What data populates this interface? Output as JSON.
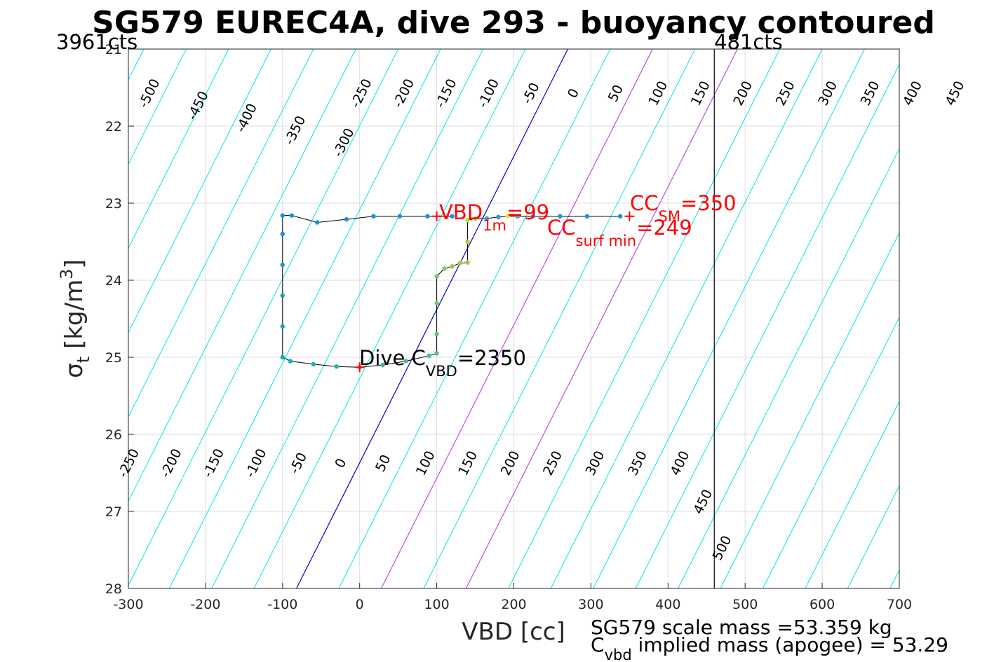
{
  "title": "SG579 EUREC4A, dive 293 - buoyancy contoured",
  "corner_left": "3961cts",
  "corner_right": "481cts",
  "axes": {
    "xlabel": "VBD [cc]",
    "ylabel_main": "σ",
    "ylabel_sub": "t",
    "ylabel_rest": " [kg/m",
    "ylabel_sup": "3",
    "ylabel_close": "]",
    "xlim": [
      -300,
      700
    ],
    "ylim": [
      21,
      28
    ],
    "y_reversed": true,
    "xticks": [
      "-300",
      "-200",
      "-100",
      "0",
      "100",
      "200",
      "300",
      "400",
      "500",
      "600",
      "700"
    ],
    "yticks": [
      "21",
      "22",
      "23",
      "24",
      "25",
      "26",
      "27",
      "28"
    ],
    "grid": true
  },
  "colors": {
    "contour": "#00e5e5",
    "zero_contour": "#0000cc",
    "limit_contours": "#b030e0",
    "trace_line": "#000000",
    "marker_red": "#ff0000",
    "vertical_line": "#000000"
  },
  "chart_data": {
    "type": "scatter",
    "contours": {
      "levels": [
        -500,
        -450,
        -400,
        -350,
        -300,
        -250,
        -200,
        -150,
        -100,
        -50,
        0,
        50,
        100,
        150,
        200,
        250,
        300,
        350,
        400,
        450,
        500
      ],
      "zero_line_vbd": [
        [
          -82,
          28
        ],
        [
          270,
          21
        ]
      ],
      "upper_labels": [
        "-500",
        "-450",
        "-400",
        "-350",
        "-300",
        "-250",
        "-200",
        "-150",
        "-100",
        "-50",
        "0",
        "50",
        "100",
        "150",
        "200",
        "250",
        "300",
        "350",
        "400",
        "450"
      ],
      "lower_labels": [
        "-250",
        "-200",
        "-150",
        "-100",
        "-50",
        "0",
        "50",
        "100",
        "150",
        "200",
        "250",
        "300",
        "350",
        "400",
        "450",
        "500"
      ],
      "limit_lines": [
        100,
        200
      ]
    },
    "vertical_line_vbd": 460,
    "trace": [
      {
        "x": 338,
        "y": 23.17,
        "c": "#1e8fe0"
      },
      {
        "x": 295,
        "y": 23.17,
        "c": "#1e8fe0"
      },
      {
        "x": 260,
        "y": 23.17,
        "c": "#2395de"
      },
      {
        "x": 225,
        "y": 23.17,
        "c": "#2a9ad8"
      },
      {
        "x": 205,
        "y": 23.17,
        "c": "#38a8c8"
      },
      {
        "x": 192,
        "y": 23.17,
        "c": "#e8e820"
      },
      {
        "x": 180,
        "y": 23.18,
        "c": "#2a9ad8"
      },
      {
        "x": 165,
        "y": 23.2,
        "c": "#2a9ad8"
      },
      {
        "x": 150,
        "y": 23.2,
        "c": "#b8d030"
      },
      {
        "x": 140,
        "y": 23.22,
        "c": "#c8d828"
      },
      {
        "x": 140,
        "y": 23.5,
        "c": "#b0cc30"
      },
      {
        "x": 140,
        "y": 23.77,
        "c": "#a8c838"
      },
      {
        "x": 130,
        "y": 23.78,
        "c": "#a0c840"
      },
      {
        "x": 120,
        "y": 23.82,
        "c": "#98c848"
      },
      {
        "x": 110,
        "y": 23.85,
        "c": "#90c850"
      },
      {
        "x": 100,
        "y": 23.95,
        "c": "#80c860"
      },
      {
        "x": 100,
        "y": 24.3,
        "c": "#70c870"
      },
      {
        "x": 100,
        "y": 24.7,
        "c": "#60c878"
      },
      {
        "x": 100,
        "y": 24.95,
        "c": "#50c880"
      },
      {
        "x": 90,
        "y": 24.98,
        "c": "#48c488"
      },
      {
        "x": 60,
        "y": 25.05,
        "c": "#40c090"
      },
      {
        "x": 30,
        "y": 25.1,
        "c": "#38bc98"
      },
      {
        "x": 0,
        "y": 25.13,
        "c": "#30b8a0"
      },
      {
        "x": -30,
        "y": 25.12,
        "c": "#28b4a8"
      },
      {
        "x": -60,
        "y": 25.09,
        "c": "#20b0b0"
      },
      {
        "x": -90,
        "y": 25.05,
        "c": "#18acb8"
      },
      {
        "x": -100,
        "y": 25.0,
        "c": "#18aabc"
      },
      {
        "x": -100,
        "y": 24.6,
        "c": "#18a4c0"
      },
      {
        "x": -100,
        "y": 24.2,
        "c": "#189ec8"
      },
      {
        "x": -100,
        "y": 23.8,
        "c": "#1898d0"
      },
      {
        "x": -100,
        "y": 23.4,
        "c": "#1892d8"
      },
      {
        "x": -100,
        "y": 23.16,
        "c": "#1890dc"
      },
      {
        "x": -88,
        "y": 23.16,
        "c": "#1e8fe0"
      },
      {
        "x": -55,
        "y": 23.25,
        "c": "#1e8fe0"
      },
      {
        "x": -17,
        "y": 23.21,
        "c": "#1e8fe0"
      },
      {
        "x": 18,
        "y": 23.17,
        "c": "#1e8fe0"
      },
      {
        "x": 52,
        "y": 23.17,
        "c": "#1e8fe0"
      },
      {
        "x": 88,
        "y": 23.17,
        "c": "#1e8fe0"
      },
      {
        "x": 120,
        "y": 23.17,
        "c": "#1e8fe0"
      }
    ],
    "markers": [
      {
        "x": 100,
        "y": 23.17
      },
      {
        "x": 350,
        "y": 23.17
      },
      {
        "x": 0,
        "y": 25.13
      }
    ]
  },
  "annotations": {
    "vbd_1m_main": "VBD",
    "vbd_1m_sub": "1m",
    "vbd_1m_val": "=99",
    "cc_sm_main": "CC",
    "cc_sm_sub": "SM",
    "cc_sm_val": "=350",
    "cc_surf_main": "CC",
    "cc_surf_sub": "surf min",
    "cc_surf_val": "=249",
    "dive_main": "Dive C",
    "dive_sub": "VBD",
    "dive_val": "=2350"
  },
  "notes": {
    "scale_mass": "SG579 scale mass =53.359 kg",
    "implied_main": "C",
    "implied_sub": "vbd",
    "implied_rest": " implied mass (apogee) = 53.29"
  }
}
